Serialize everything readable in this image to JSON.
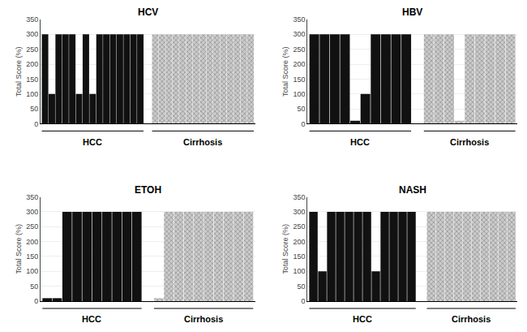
{
  "chart_data": [
    {
      "type": "bar",
      "title": "HCV",
      "ylabel": "Total Score (%)",
      "ylim": [
        0,
        350
      ],
      "yticks": [
        0,
        50,
        100,
        150,
        200,
        250,
        300,
        350
      ],
      "tick_labels": "y",
      "series": [
        {
          "name": "HCC",
          "color": "#111111",
          "values": [
            300,
            100,
            300,
            300,
            300,
            100,
            300,
            100,
            300,
            300,
            300,
            300,
            300,
            300,
            300
          ]
        },
        {
          "name": "Cirrhosis",
          "color": "#cccccc",
          "values": [
            300,
            300,
            300,
            300,
            300,
            300,
            300,
            300,
            300,
            300,
            300,
            300,
            300,
            300,
            300
          ]
        }
      ]
    },
    {
      "type": "bar",
      "title": "HBV",
      "ylabel": "Total Score (%)",
      "ylim": [
        0,
        350
      ],
      "yticks": [
        0,
        50,
        100,
        150,
        200,
        250,
        300,
        350
      ],
      "tick_labels": "y",
      "series": [
        {
          "name": "HCC",
          "color": "#111111",
          "values": [
            300,
            300,
            300,
            300,
            10,
            100,
            300,
            300,
            300,
            300
          ]
        },
        {
          "name": "Cirrhosis",
          "color": "#cccccc",
          "values": [
            300,
            300,
            300,
            10,
            300,
            300,
            300,
            300,
            300
          ]
        }
      ]
    },
    {
      "type": "bar",
      "title": "ETOH",
      "ylabel": "Total Score (%)",
      "ylim": [
        0,
        350
      ],
      "yticks": [
        0,
        50,
        100,
        150,
        200,
        250,
        300,
        350
      ],
      "tick_labels": "y",
      "series": [
        {
          "name": "HCC",
          "color": "#111111",
          "values": [
            10,
            10,
            300,
            300,
            300,
            300,
            300,
            300,
            300,
            300
          ]
        },
        {
          "name": "Cirrhosis",
          "color": "#cccccc",
          "values": [
            10,
            300,
            300,
            300,
            300,
            300,
            300,
            300,
            300,
            300
          ]
        }
      ]
    },
    {
      "type": "bar",
      "title": "NASH",
      "ylabel": "Total Score (%)",
      "ylim": [
        0,
        350
      ],
      "yticks": [
        0,
        50,
        100,
        150,
        200,
        250,
        300,
        350
      ],
      "tick_labels": "y",
      "series": [
        {
          "name": "HCC",
          "color": "#111111",
          "values": [
            300,
            100,
            300,
            300,
            300,
            300,
            300,
            100,
            300,
            300,
            300,
            300
          ]
        },
        {
          "name": "Cirrhosis",
          "color": "#cccccc",
          "values": [
            300,
            300,
            300,
            300,
            300,
            300,
            300,
            300,
            300,
            300
          ]
        }
      ]
    }
  ]
}
